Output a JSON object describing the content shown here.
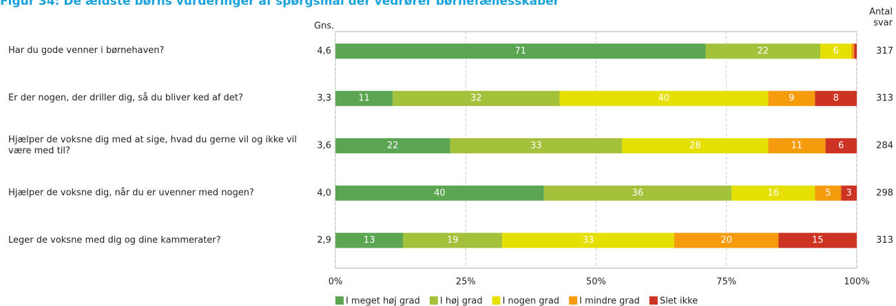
{
  "chart_data": {
    "type": "stacked-bar-horizontal",
    "title": "Figur 34: De ældste børns vurderinger af spørgsmål der vedrører børnefællesskaber",
    "categories": [
      "Har du gode venner i børnehaven?",
      "Er der nogen, der driller dig, så du bliver ked af det?",
      "Hjælper de voksne dig med at sige, hvad du gerne vil og ikke vil være med til?",
      "Hjælper de voksne dig, når du er uvenner med nogen?",
      "Leger de voksne med dig og dine kammerater?"
    ],
    "mean_header": "Gns.",
    "means": [
      "4,6",
      "3,3",
      "3,6",
      "4,0",
      "2,9"
    ],
    "count_header": "Antal svar",
    "counts": [
      317,
      313,
      284,
      298,
      313
    ],
    "series": [
      {
        "name": "I meget høj grad",
        "color": "#5ba553",
        "values": [
          71,
          11,
          22,
          40,
          13
        ]
      },
      {
        "name": "I høj grad",
        "color": "#a3c13a",
        "values": [
          22,
          32,
          33,
          36,
          19
        ]
      },
      {
        "name": "I nogen grad",
        "color": "#e6e000",
        "values": [
          6,
          40,
          28,
          16,
          33
        ]
      },
      {
        "name": "I mindre grad",
        "color": "#f59b0c",
        "values": [
          0.5,
          9,
          11,
          5,
          20
        ]
      },
      {
        "name": "Slet ikke",
        "color": "#cc3322",
        "values": [
          0.5,
          8,
          6,
          3,
          15
        ]
      }
    ],
    "xlim": [
      0,
      100
    ],
    "xticks": [
      {
        "value": 0,
        "label": "0%"
      },
      {
        "value": 25,
        "label": "25%"
      },
      {
        "value": 50,
        "label": "50%"
      },
      {
        "value": 75,
        "label": "75%"
      },
      {
        "value": 100,
        "label": "100%"
      }
    ],
    "grid": true,
    "legend": "bottom"
  }
}
